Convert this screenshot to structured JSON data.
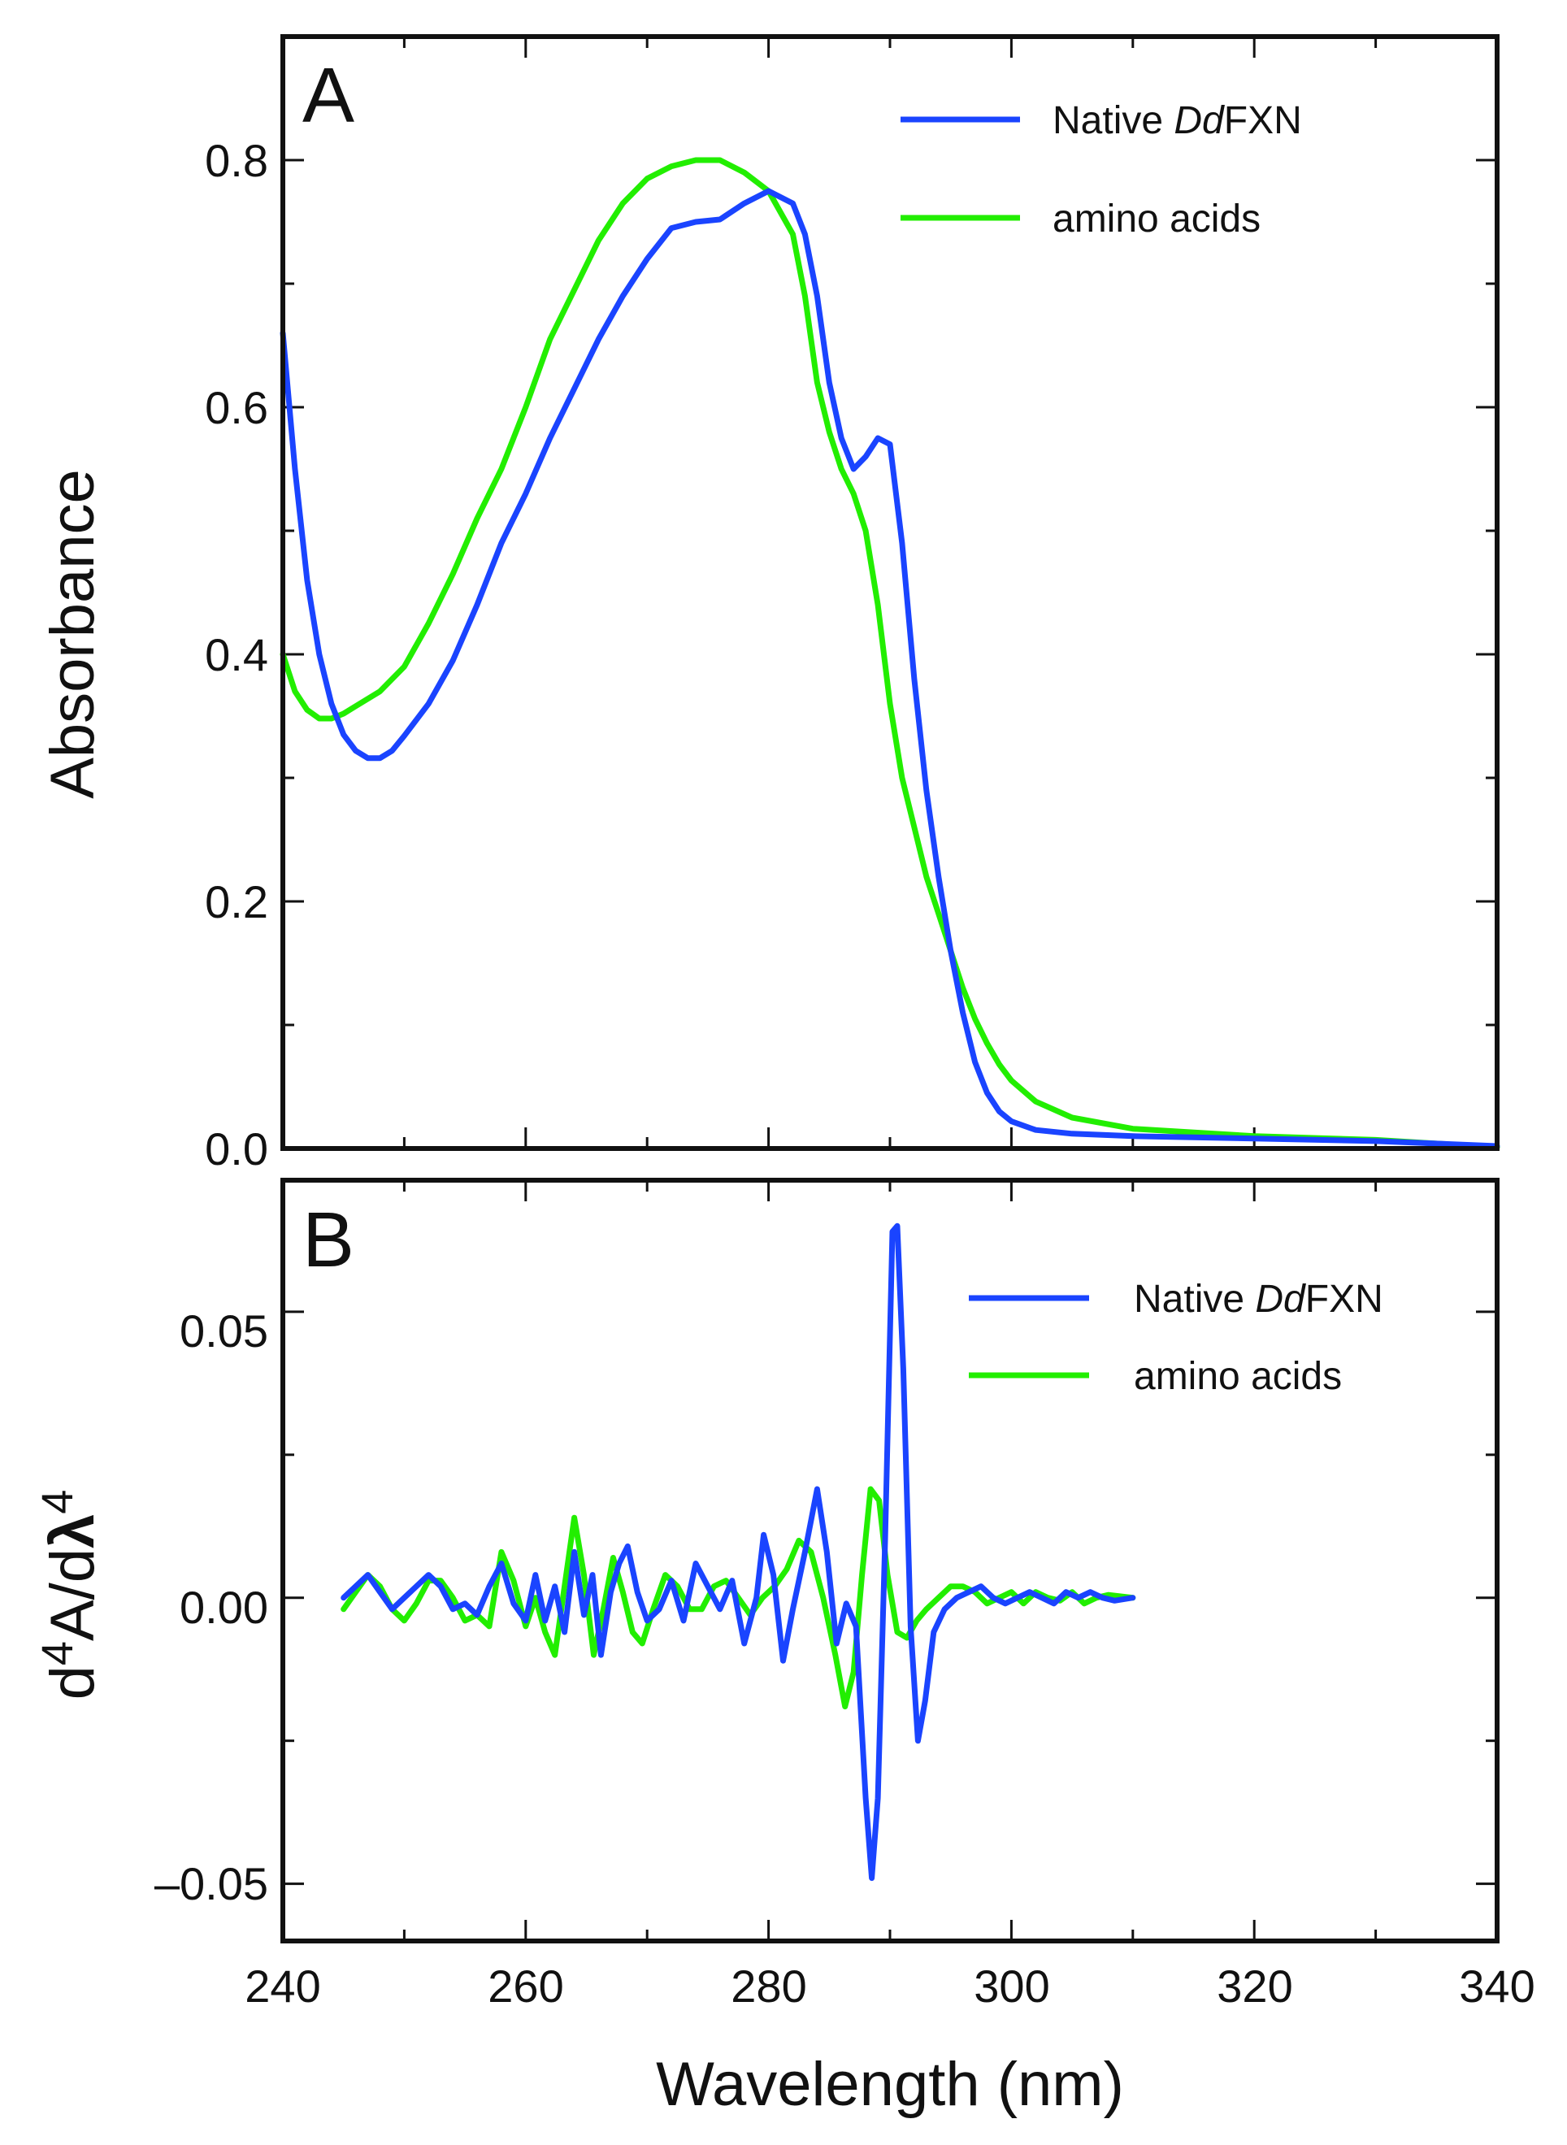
{
  "chart_data": [
    {
      "panel": "A",
      "type": "line",
      "xlabel": "Wavelength (nm)",
      "ylabel": "Absorbance",
      "xlim": [
        240,
        340
      ],
      "ylim": [
        0.0,
        0.9
      ],
      "x_ticks": [
        240,
        260,
        280,
        300,
        320,
        340
      ],
      "y_ticks": [
        0.0,
        0.2,
        0.4,
        0.6,
        0.8
      ],
      "y_tick_labels": [
        "0.0",
        "0.2",
        "0.4",
        "0.6",
        "0.8"
      ],
      "legend_position": "top-right",
      "series": [
        {
          "name": "Native DdFXN",
          "legend_parts": [
            "Native ",
            "Dd",
            "FXN"
          ],
          "color": "#1a44ff",
          "points": [
            [
              240,
              0.66
            ],
            [
              241,
              0.55
            ],
            [
              242,
              0.46
            ],
            [
              243,
              0.4
            ],
            [
              244,
              0.36
            ],
            [
              245,
              0.335
            ],
            [
              246,
              0.322
            ],
            [
              247,
              0.316
            ],
            [
              248,
              0.316
            ],
            [
              249,
              0.322
            ],
            [
              250,
              0.334
            ],
            [
              252,
              0.36
            ],
            [
              254,
              0.395
            ],
            [
              256,
              0.44
            ],
            [
              258,
              0.49
            ],
            [
              260,
              0.53
            ],
            [
              262,
              0.575
            ],
            [
              264,
              0.615
            ],
            [
              266,
              0.655
            ],
            [
              268,
              0.69
            ],
            [
              270,
              0.72
            ],
            [
              272,
              0.745
            ],
            [
              274,
              0.75
            ],
            [
              276,
              0.752
            ],
            [
              278,
              0.765
            ],
            [
              280,
              0.775
            ],
            [
              282,
              0.765
            ],
            [
              283,
              0.74
            ],
            [
              284,
              0.69
            ],
            [
              285,
              0.62
            ],
            [
              286,
              0.575
            ],
            [
              287,
              0.55
            ],
            [
              288,
              0.56
            ],
            [
              289,
              0.575
            ],
            [
              290,
              0.57
            ],
            [
              291,
              0.49
            ],
            [
              292,
              0.38
            ],
            [
              293,
              0.29
            ],
            [
              294,
              0.22
            ],
            [
              295,
              0.16
            ],
            [
              296,
              0.11
            ],
            [
              297,
              0.07
            ],
            [
              298,
              0.045
            ],
            [
              299,
              0.03
            ],
            [
              300,
              0.022
            ],
            [
              302,
              0.015
            ],
            [
              305,
              0.012
            ],
            [
              310,
              0.01
            ],
            [
              320,
              0.008
            ],
            [
              330,
              0.006
            ],
            [
              340,
              0.002
            ]
          ]
        },
        {
          "name": "amino acids",
          "legend_parts": [
            "amino acids"
          ],
          "color": "#22ee00",
          "points": [
            [
              240,
              0.4
            ],
            [
              241,
              0.37
            ],
            [
              242,
              0.355
            ],
            [
              243,
              0.348
            ],
            [
              244,
              0.348
            ],
            [
              245,
              0.352
            ],
            [
              246,
              0.358
            ],
            [
              248,
              0.37
            ],
            [
              250,
              0.39
            ],
            [
              252,
              0.425
            ],
            [
              254,
              0.465
            ],
            [
              256,
              0.51
            ],
            [
              258,
              0.55
            ],
            [
              260,
              0.6
            ],
            [
              262,
              0.655
            ],
            [
              264,
              0.695
            ],
            [
              266,
              0.735
            ],
            [
              268,
              0.765
            ],
            [
              270,
              0.785
            ],
            [
              272,
              0.795
            ],
            [
              274,
              0.8
            ],
            [
              276,
              0.8
            ],
            [
              278,
              0.79
            ],
            [
              280,
              0.775
            ],
            [
              282,
              0.74
            ],
            [
              283,
              0.69
            ],
            [
              284,
              0.62
            ],
            [
              285,
              0.58
            ],
            [
              286,
              0.55
            ],
            [
              287,
              0.53
            ],
            [
              288,
              0.5
            ],
            [
              289,
              0.44
            ],
            [
              290,
              0.36
            ],
            [
              291,
              0.3
            ],
            [
              292,
              0.26
            ],
            [
              293,
              0.22
            ],
            [
              294,
              0.19
            ],
            [
              295,
              0.16
            ],
            [
              296,
              0.13
            ],
            [
              297,
              0.105
            ],
            [
              298,
              0.085
            ],
            [
              299,
              0.068
            ],
            [
              300,
              0.055
            ],
            [
              302,
              0.038
            ],
            [
              305,
              0.025
            ],
            [
              310,
              0.016
            ],
            [
              320,
              0.01
            ],
            [
              330,
              0.007
            ],
            [
              340,
              0.001
            ]
          ]
        }
      ]
    },
    {
      "panel": "B",
      "type": "line",
      "xlabel": "Wavelength (nm)",
      "ylabel_parts": [
        "d",
        "4",
        "A/d",
        "λ",
        "4"
      ],
      "xlim": [
        240,
        340
      ],
      "ylim": [
        -0.06,
        0.073
      ],
      "x_ticks": [
        240,
        260,
        280,
        300,
        320,
        340
      ],
      "x_tick_labels": [
        "240",
        "260",
        "280",
        "300",
        "320",
        "340"
      ],
      "y_ticks": [
        -0.05,
        0.0,
        0.05
      ],
      "y_tick_labels": [
        "–0.05",
        "0.00",
        "0.05"
      ],
      "legend_position": "top-right",
      "series": [
        {
          "name": "Native DdFXN",
          "legend_parts": [
            "Native ",
            "Dd",
            "FXN"
          ],
          "color": "#1a44ff",
          "points": [
            [
              245,
              0.0
            ],
            [
              246,
              0.002
            ],
            [
              247,
              0.004
            ],
            [
              248,
              0.001
            ],
            [
              249,
              -0.002
            ],
            [
              250,
              0.0
            ],
            [
              251,
              0.002
            ],
            [
              252,
              0.004
            ],
            [
              253,
              0.002
            ],
            [
              254,
              -0.002
            ],
            [
              255,
              -0.001
            ],
            [
              256,
              -0.003
            ],
            [
              257,
              0.002
            ],
            [
              258,
              0.006
            ],
            [
              259,
              -0.001
            ],
            [
              260,
              -0.004
            ],
            [
              260.8,
              0.004
            ],
            [
              261.6,
              -0.004
            ],
            [
              262.4,
              0.002
            ],
            [
              263.2,
              -0.006
            ],
            [
              264,
              0.008
            ],
            [
              264.8,
              -0.003
            ],
            [
              265.5,
              0.004
            ],
            [
              266.2,
              -0.01
            ],
            [
              267,
              0.001
            ],
            [
              267.7,
              0.006
            ],
            [
              268.4,
              0.009
            ],
            [
              269.2,
              0.001
            ],
            [
              270,
              -0.004
            ],
            [
              271,
              -0.002
            ],
            [
              272,
              0.003
            ],
            [
              273,
              -0.004
            ],
            [
              274,
              0.006
            ],
            [
              275,
              0.002
            ],
            [
              276,
              -0.002
            ],
            [
              277,
              0.003
            ],
            [
              278,
              -0.008
            ],
            [
              279,
              0.0
            ],
            [
              279.6,
              0.011
            ],
            [
              280.4,
              0.004
            ],
            [
              281.2,
              -0.011
            ],
            [
              282,
              -0.002
            ],
            [
              283,
              0.008
            ],
            [
              284,
              0.019
            ],
            [
              284.8,
              0.008
            ],
            [
              285.6,
              -0.008
            ],
            [
              286.4,
              -0.001
            ],
            [
              287.2,
              -0.005
            ],
            [
              288,
              -0.035
            ],
            [
              288.5,
              -0.049
            ],
            [
              289,
              -0.035
            ],
            [
              289.6,
              0.01
            ],
            [
              290.2,
              0.064
            ],
            [
              290.6,
              0.065
            ],
            [
              291.1,
              0.04
            ],
            [
              291.7,
              -0.005
            ],
            [
              292.3,
              -0.025
            ],
            [
              292.9,
              -0.018
            ],
            [
              293.6,
              -0.006
            ],
            [
              294.5,
              -0.002
            ],
            [
              295.5,
              0.0
            ],
            [
              296.5,
              0.001
            ],
            [
              297.5,
              0.002
            ],
            [
              298.5,
              0.0
            ],
            [
              299.5,
              -0.001
            ],
            [
              300.5,
              0.0
            ],
            [
              301.5,
              0.001
            ],
            [
              302.5,
              0.0
            ],
            [
              303.5,
              -0.001
            ],
            [
              304.5,
              0.001
            ],
            [
              305.5,
              0.0
            ],
            [
              306.5,
              0.001
            ],
            [
              307.5,
              0.0
            ],
            [
              308.5,
              -0.0005
            ],
            [
              310,
              0.0
            ]
          ]
        },
        {
          "name": "amino acids",
          "legend_parts": [
            "amino acids"
          ],
          "color": "#22ee00",
          "points": [
            [
              245,
              -0.002
            ],
            [
              246,
              0.001
            ],
            [
              247,
              0.004
            ],
            [
              248,
              0.002
            ],
            [
              249,
              -0.002
            ],
            [
              250,
              -0.004
            ],
            [
              251,
              -0.001
            ],
            [
              252,
              0.003
            ],
            [
              253,
              0.003
            ],
            [
              254,
              0.0
            ],
            [
              255,
              -0.004
            ],
            [
              256,
              -0.003
            ],
            [
              257,
              -0.005
            ],
            [
              258,
              0.008
            ],
            [
              259,
              0.003
            ],
            [
              260,
              -0.005
            ],
            [
              260.8,
              0.0
            ],
            [
              261.6,
              -0.006
            ],
            [
              262.4,
              -0.01
            ],
            [
              263.2,
              0.002
            ],
            [
              264,
              0.014
            ],
            [
              264.8,
              0.004
            ],
            [
              265.6,
              -0.01
            ],
            [
              266.4,
              -0.002
            ],
            [
              267.2,
              0.007
            ],
            [
              268,
              0.001
            ],
            [
              268.8,
              -0.006
            ],
            [
              269.6,
              -0.008
            ],
            [
              270.5,
              -0.002
            ],
            [
              271.5,
              0.004
            ],
            [
              272.5,
              0.002
            ],
            [
              273.5,
              -0.002
            ],
            [
              274.5,
              -0.002
            ],
            [
              275.5,
              0.002
            ],
            [
              276.5,
              0.003
            ],
            [
              277.5,
              0.0
            ],
            [
              278.5,
              -0.003
            ],
            [
              279.5,
              0.0
            ],
            [
              280.5,
              0.002
            ],
            [
              281.5,
              0.005
            ],
            [
              282.5,
              0.01
            ],
            [
              283.5,
              0.008
            ],
            [
              284.5,
              0.0
            ],
            [
              285.5,
              -0.01
            ],
            [
              286.3,
              -0.019
            ],
            [
              287,
              -0.013
            ],
            [
              287.7,
              0.004
            ],
            [
              288.4,
              0.019
            ],
            [
              289.1,
              0.017
            ],
            [
              289.8,
              0.004
            ],
            [
              290.6,
              -0.006
            ],
            [
              291.4,
              -0.007
            ],
            [
              292.2,
              -0.004
            ],
            [
              293,
              -0.002
            ],
            [
              294,
              0.0
            ],
            [
              295,
              0.002
            ],
            [
              296,
              0.002
            ],
            [
              297,
              0.001
            ],
            [
              298,
              -0.001
            ],
            [
              299,
              0.0
            ],
            [
              300,
              0.001
            ],
            [
              301,
              -0.001
            ],
            [
              302,
              0.001
            ],
            [
              303,
              0.0
            ],
            [
              304,
              -0.0005
            ],
            [
              305,
              0.001
            ],
            [
              306,
              -0.001
            ],
            [
              307,
              0.0
            ],
            [
              308,
              0.0005
            ],
            [
              310,
              0.0
            ]
          ]
        }
      ]
    }
  ]
}
